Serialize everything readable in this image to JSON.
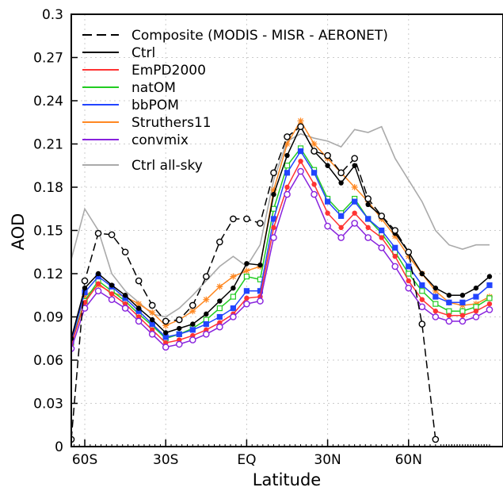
{
  "chart_data": {
    "type": "line",
    "xlabel": "Latitude",
    "ylabel": "AOD",
    "xlim": [
      -90,
      90
    ],
    "ylim": [
      0,
      0.3
    ],
    "x_ticks": [
      {
        "value": -60,
        "label": "60S"
      },
      {
        "value": -30,
        "label": "30S"
      },
      {
        "value": 0,
        "label": "EQ"
      },
      {
        "value": 30,
        "label": "30N"
      },
      {
        "value": 60,
        "label": "60N"
      }
    ],
    "y_ticks": [
      {
        "value": 0,
        "label": "0"
      },
      {
        "value": 0.03,
        "label": "0.03"
      },
      {
        "value": 0.06,
        "label": "0.06"
      },
      {
        "value": 0.09,
        "label": "0.09"
      },
      {
        "value": 0.12,
        "label": "0.12"
      },
      {
        "value": 0.15,
        "label": "0.15"
      },
      {
        "value": 0.18,
        "label": "0.18"
      },
      {
        "value": 0.21,
        "label": "0.21"
      },
      {
        "value": 0.24,
        "label": "0.24"
      },
      {
        "value": 0.27,
        "label": "0.27"
      },
      {
        "value": 0.3,
        "label": "0.3"
      }
    ],
    "grid": "horizontal dotted",
    "legend": "top-left",
    "x": [
      -90,
      -85,
      -80,
      -75,
      -70,
      -65,
      -60,
      -55,
      -50,
      -45,
      -40,
      -35,
      -30,
      -25,
      -20,
      -15,
      -10,
      -5,
      0,
      5,
      10,
      15,
      20,
      25,
      30,
      35,
      40,
      45,
      50,
      55,
      60,
      65,
      70,
      75,
      80,
      85,
      90
    ],
    "series": [
      {
        "name": "Composite (MODIS - MISR - AERONET)",
        "color": "#000000",
        "style": "dashed-circles",
        "values": [
          null,
          null,
          null,
          null,
          null,
          0.005,
          0.115,
          0.148,
          0.147,
          0.135,
          0.115,
          0.098,
          0.087,
          0.088,
          0.098,
          0.118,
          0.142,
          0.158,
          0.158,
          0.155,
          0.19,
          0.215,
          0.222,
          0.205,
          0.202,
          0.19,
          0.2,
          0.172,
          0.16,
          0.15,
          0.135,
          0.085,
          0.005,
          null,
          null,
          null,
          null
        ]
      },
      {
        "name": "Ctrl",
        "color": "#000000",
        "style": "solid-dots",
        "values": [
          0.038,
          0.04,
          0.04,
          0.042,
          0.05,
          0.075,
          0.11,
          0.12,
          0.112,
          0.105,
          0.096,
          0.088,
          0.079,
          0.082,
          0.085,
          0.092,
          0.101,
          0.11,
          0.127,
          0.126,
          0.175,
          0.202,
          0.222,
          0.205,
          0.195,
          0.183,
          0.195,
          0.168,
          0.16,
          0.148,
          0.135,
          0.12,
          0.11,
          0.105,
          0.105,
          0.11,
          0.118
        ]
      },
      {
        "name": "EmPD2000",
        "color": "#ff3333",
        "style": "solid-dots",
        "values": [
          0.034,
          0.035,
          0.035,
          0.037,
          0.045,
          0.071,
          0.1,
          0.113,
          0.106,
          0.099,
          0.09,
          0.081,
          0.072,
          0.074,
          0.077,
          0.081,
          0.086,
          0.092,
          0.103,
          0.104,
          0.152,
          0.18,
          0.198,
          0.182,
          0.162,
          0.152,
          0.162,
          0.152,
          0.145,
          0.132,
          0.115,
          0.102,
          0.094,
          0.091,
          0.091,
          0.094,
          0.099
        ]
      },
      {
        "name": "natOM",
        "color": "#22cc22",
        "style": "solid-squares",
        "values": [
          0.033,
          0.034,
          0.034,
          0.035,
          0.045,
          0.072,
          0.101,
          0.115,
          0.108,
          0.101,
          0.092,
          0.084,
          0.075,
          0.078,
          0.082,
          0.088,
          0.096,
          0.104,
          0.118,
          0.116,
          0.165,
          0.195,
          0.207,
          0.192,
          0.172,
          0.162,
          0.172,
          0.158,
          0.148,
          0.135,
          0.12,
          0.108,
          0.099,
          0.094,
          0.094,
          0.097,
          0.103
        ]
      },
      {
        "name": "bbPOM",
        "color": "#2244ff",
        "style": "solid-squares",
        "values": [
          0.036,
          0.037,
          0.037,
          0.039,
          0.048,
          0.073,
          0.107,
          0.118,
          0.111,
          0.103,
          0.094,
          0.085,
          0.076,
          0.078,
          0.081,
          0.085,
          0.09,
          0.096,
          0.108,
          0.108,
          0.158,
          0.19,
          0.205,
          0.19,
          0.17,
          0.16,
          0.17,
          0.158,
          0.15,
          0.138,
          0.125,
          0.112,
          0.104,
          0.1,
          0.1,
          0.104,
          0.112
        ]
      },
      {
        "name": "Struthers11",
        "color": "#ff8822",
        "style": "solid-stars",
        "values": [
          0.036,
          0.037,
          0.037,
          0.039,
          0.05,
          0.076,
          0.104,
          0.112,
          0.107,
          0.104,
          0.099,
          0.093,
          0.084,
          0.088,
          0.094,
          0.102,
          0.111,
          0.118,
          0.122,
          0.125,
          0.178,
          0.21,
          0.226,
          0.21,
          0.2,
          0.19,
          0.18,
          0.17,
          0.158,
          0.146,
          0.132,
          0.12,
          0.108,
          0.1,
          0.098,
          0.099,
          0.104
        ]
      },
      {
        "name": "convmix",
        "color": "#8822dd",
        "style": "solid-circles",
        "values": [
          0.031,
          0.032,
          0.032,
          0.033,
          0.042,
          0.068,
          0.096,
          0.108,
          0.102,
          0.096,
          0.087,
          0.078,
          0.069,
          0.071,
          0.074,
          0.078,
          0.083,
          0.09,
          0.099,
          0.101,
          0.145,
          0.175,
          0.191,
          0.175,
          0.153,
          0.145,
          0.155,
          0.145,
          0.138,
          0.125,
          0.11,
          0.097,
          0.09,
          0.087,
          0.087,
          0.09,
          0.095
        ]
      },
      {
        "name": "Ctrl all-sky",
        "color": "#aaaaaa",
        "style": "solid",
        "values": [
          0.072,
          0.067,
          0.062,
          0.07,
          0.09,
          0.13,
          0.165,
          0.15,
          0.12,
          0.108,
          0.1,
          0.092,
          0.09,
          0.096,
          0.105,
          0.115,
          0.125,
          0.132,
          0.125,
          0.14,
          0.185,
          0.212,
          0.217,
          0.214,
          0.212,
          0.208,
          0.22,
          0.218,
          0.222,
          0.2,
          0.185,
          0.17,
          0.15,
          0.14,
          0.137,
          0.14,
          0.14
        ]
      }
    ]
  }
}
